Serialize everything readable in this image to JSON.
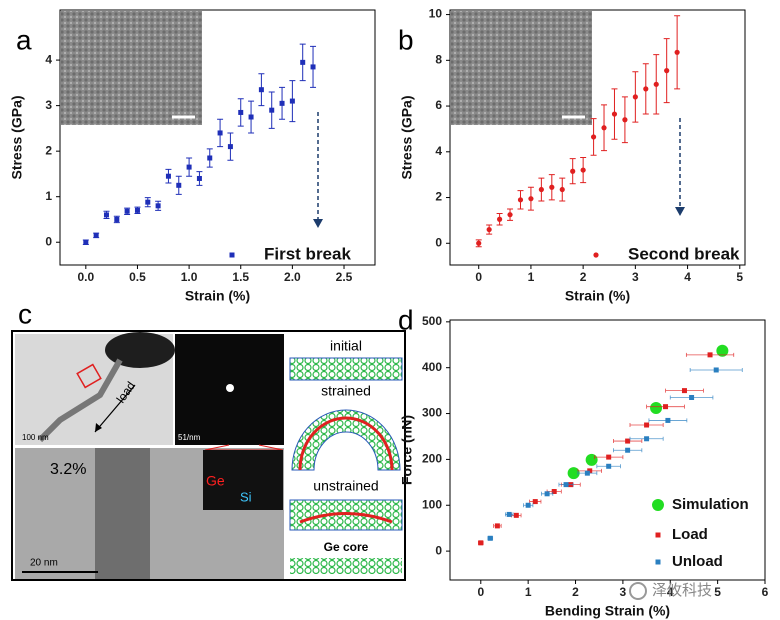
{
  "chart_data": [
    {
      "type": "scatter",
      "panel_label": "a",
      "xlabel": "Strain (%)",
      "ylabel": "Stress (GPa)",
      "xlim": [
        -0.25,
        2.8
      ],
      "ylim": [
        -0.5,
        5.1
      ],
      "xticks": [
        {
          "value": 0,
          "label": "0.0"
        },
        {
          "value": 0.5,
          "label": "0.5"
        },
        {
          "value": 1,
          "label": "1.0"
        },
        {
          "value": 1.5,
          "label": "1.5"
        },
        {
          "value": 2,
          "label": "2.0"
        },
        {
          "value": 2.5,
          "label": "2.5"
        }
      ],
      "yticks": [
        0,
        1,
        2,
        3,
        4
      ],
      "legend": "lower right",
      "series": [
        {
          "name": "First break",
          "color": "#1f2fb8",
          "marker": "square",
          "x": [
            0,
            0.1,
            0.2,
            0.3,
            0.4,
            0.5,
            0.6,
            0.7,
            0.8,
            0.9,
            1.0,
            1.1,
            1.2,
            1.3,
            1.4,
            1.5,
            1.6,
            1.7,
            1.8,
            1.9,
            2.0,
            2.1,
            2.2
          ],
          "values": [
            0,
            0.15,
            0.6,
            0.5,
            0.68,
            0.7,
            0.88,
            0.8,
            1.45,
            1.25,
            1.65,
            1.4,
            1.85,
            2.4,
            2.1,
            2.85,
            2.75,
            3.35,
            2.9,
            3.05,
            3.1,
            3.95,
            3.85
          ],
          "errors": [
            0.05,
            0.05,
            0.08,
            0.07,
            0.07,
            0.07,
            0.1,
            0.1,
            0.15,
            0.2,
            0.2,
            0.15,
            0.2,
            0.3,
            0.3,
            0.3,
            0.35,
            0.35,
            0.4,
            0.35,
            0.45,
            0.4,
            0.45
          ]
        }
      ]
    },
    {
      "type": "scatter",
      "panel_label": "b",
      "xlabel": "Strain (%)",
      "ylabel": "Stress (GPa)",
      "xlim": [
        -0.55,
        5.1
      ],
      "ylim": [
        -0.95,
        10.2
      ],
      "xticks": [
        0,
        1,
        2,
        3,
        4,
        5
      ],
      "yticks": [
        0,
        2,
        4,
        6,
        8,
        10
      ],
      "legend": "lower right",
      "series": [
        {
          "name": "Second break",
          "color": "#e02020",
          "marker": "circle",
          "x": [
            0,
            0.2,
            0.4,
            0.6,
            0.8,
            1.0,
            1.2,
            1.4,
            1.6,
            1.8,
            2.0,
            2.2,
            2.4,
            2.6,
            2.8,
            3.0,
            3.2,
            3.4,
            3.6,
            3.8
          ],
          "values": [
            0,
            0.6,
            1.05,
            1.25,
            1.9,
            1.95,
            2.35,
            2.45,
            2.35,
            3.15,
            3.2,
            4.65,
            5.05,
            5.65,
            5.4,
            6.4,
            6.75,
            6.95,
            7.55,
            8.35
          ],
          "errors": [
            0.15,
            0.2,
            0.25,
            0.25,
            0.4,
            0.5,
            0.5,
            0.55,
            0.5,
            0.55,
            0.55,
            0.8,
            1.0,
            1.1,
            1.0,
            1.1,
            1.1,
            1.3,
            1.4,
            1.6
          ]
        }
      ]
    },
    {
      "type": "scatter",
      "panel_label": "d",
      "xlabel": "Bending Strain (%)",
      "ylabel": "Force (nN)",
      "xlim": [
        -0.65,
        6
      ],
      "ylim": [
        -63,
        504
      ],
      "xticks": [
        0,
        1,
        2,
        3,
        4,
        5,
        6
      ],
      "yticks": [
        0,
        100,
        200,
        300,
        400,
        500
      ],
      "legend": "lower right",
      "series": [
        {
          "name": "Simulation",
          "color": "#22dd22",
          "marker": "big-circle",
          "x": [
            1.96,
            2.34,
            3.7,
            5.1
          ],
          "values": [
            170,
            199,
            312,
            437
          ]
        },
        {
          "name": "Load",
          "color": "#e02020",
          "marker": "square",
          "x": [
            0,
            0.35,
            0.75,
            1.15,
            1.55,
            1.9,
            2.3,
            2.7,
            3.1,
            3.5,
            3.9,
            4.3,
            4.84
          ],
          "values": [
            18,
            55,
            78,
            108,
            130,
            145,
            175,
            205,
            240,
            275,
            315,
            350,
            428
          ],
          "x_errors": [
            0.05,
            0.08,
            0.1,
            0.12,
            0.15,
            0.2,
            0.25,
            0.3,
            0.3,
            0.35,
            0.4,
            0.4,
            0.5
          ]
        },
        {
          "name": "Unload",
          "color": "#2a7fc0",
          "marker": "square",
          "x": [
            0.2,
            0.6,
            1.0,
            1.4,
            1.8,
            2.25,
            2.7,
            3.1,
            3.5,
            3.95,
            4.45,
            4.97
          ],
          "values": [
            28,
            80,
            100,
            125,
            145,
            170,
            185,
            220,
            245,
            285,
            335,
            395
          ],
          "x_errors": [
            0.05,
            0.08,
            0.1,
            0.12,
            0.15,
            0.2,
            0.25,
            0.3,
            0.35,
            0.4,
            0.45,
            0.55
          ]
        }
      ]
    }
  ],
  "panel_c": {
    "label": "c",
    "scale_top": "100 nm",
    "load": "load",
    "diffraction_scale": "51/nm",
    "strain": "3.2%",
    "scale_bottom": "20 nm",
    "ge": "Ge",
    "si": "Si",
    "initial": "initial",
    "strained": "strained",
    "unstrained": "unstrained",
    "core": "Ge core"
  },
  "watermark": "泽攸科技"
}
